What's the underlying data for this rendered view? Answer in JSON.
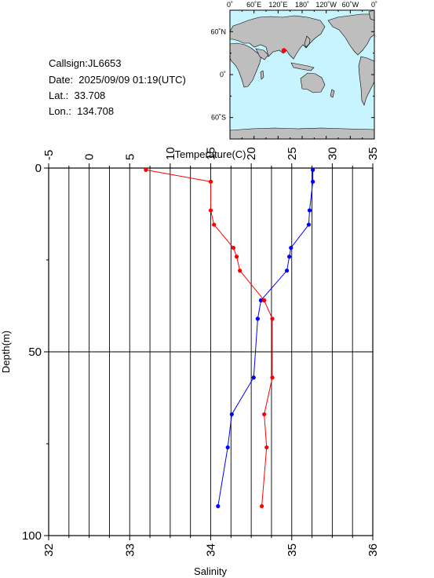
{
  "info": {
    "callsign": "Callsign:JL6653",
    "date": "Date:  2025/09/09 01:19(UTC)",
    "lat": "Lat.:  33.708",
    "lon": "Lon.:  134.708"
  },
  "map": {
    "lon_labels": [
      "0˚",
      "60˚E",
      "120˚E",
      "180˚",
      "120˚W",
      "60˚W",
      "0˚"
    ],
    "lat_labels": [
      "60˚N",
      "0˚",
      "60˚S"
    ],
    "station": {
      "lon": 134.708,
      "lat": 33.708
    },
    "ocean_color": "#c8f4ff",
    "land_color": "#bebebe",
    "marker_color": "#ff0000"
  },
  "chart_data": {
    "type": "line",
    "title": "",
    "temperature_axis": {
      "label": "Temperature(C)",
      "range": [
        -5,
        35
      ],
      "ticks": [
        -5,
        0,
        5,
        10,
        15,
        20,
        25,
        30,
        35
      ]
    },
    "salinity_axis": {
      "label": "Salinity",
      "range": [
        32,
        36
      ],
      "ticks": [
        32,
        33,
        34,
        35,
        36
      ]
    },
    "depth_axis": {
      "label": "Depth(m)",
      "range": [
        0,
        100
      ],
      "inverted": true,
      "ticks": [
        0,
        50,
        100
      ]
    },
    "grid": true,
    "series": [
      {
        "quantity": "temperature",
        "color": "#0000ff",
        "points": [
          {
            "depth": 0.5,
            "value": 27.6
          },
          {
            "depth": 3.7,
            "value": 27.6
          },
          {
            "depth": 11.5,
            "value": 27.2
          },
          {
            "depth": 15.4,
            "value": 27.1
          },
          {
            "depth": 21.7,
            "value": 24.9
          },
          {
            "depth": 24.1,
            "value": 24.7
          },
          {
            "depth": 27.9,
            "value": 24.4
          },
          {
            "depth": 36.0,
            "value": 21.2
          },
          {
            "depth": 41.0,
            "value": 20.8
          },
          {
            "depth": 57.0,
            "value": 20.3
          },
          {
            "depth": 67.0,
            "value": 17.6
          },
          {
            "depth": 76.0,
            "value": 17.1
          },
          {
            "depth": 92.0,
            "value": 15.9
          }
        ]
      },
      {
        "quantity": "salinity",
        "color": "#ff0000",
        "points": [
          {
            "depth": 0.5,
            "value": 33.2
          },
          {
            "depth": 3.7,
            "value": 34.0
          },
          {
            "depth": 11.5,
            "value": 34.0
          },
          {
            "depth": 15.4,
            "value": 34.04
          },
          {
            "depth": 21.7,
            "value": 34.28
          },
          {
            "depth": 24.1,
            "value": 34.32
          },
          {
            "depth": 27.9,
            "value": 34.36
          },
          {
            "depth": 36.0,
            "value": 34.66
          },
          {
            "depth": 41.0,
            "value": 34.76
          },
          {
            "depth": 57.0,
            "value": 34.76
          },
          {
            "depth": 67.0,
            "value": 34.66
          },
          {
            "depth": 76.0,
            "value": 34.69
          },
          {
            "depth": 92.0,
            "value": 34.63
          }
        ]
      }
    ]
  }
}
